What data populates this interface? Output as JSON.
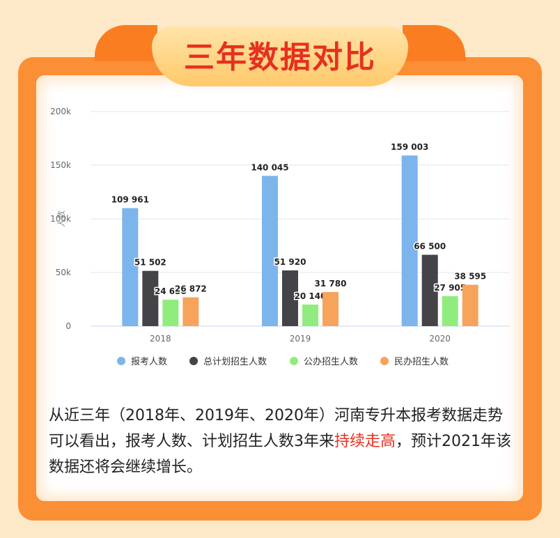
{
  "title": "三年数据对比",
  "chart_data": {
    "type": "bar",
    "categories": [
      "2018",
      "2019",
      "2020"
    ],
    "ylabel": "人数",
    "ylim": [
      0,
      200000
    ],
    "yticks": [
      0,
      50000,
      100000,
      150000,
      200000
    ],
    "ytick_labels": [
      "0",
      "50k",
      "100k",
      "150k",
      "200k"
    ],
    "grid": true,
    "legend_position": "bottom",
    "series": [
      {
        "name": "报考人数",
        "color": "#7cb5ec",
        "values": [
          109961,
          140045,
          159003
        ],
        "labels": [
          "109 961",
          "140 045",
          "159 003"
        ]
      },
      {
        "name": "总计划招生人数",
        "color": "#434348",
        "values": [
          51502,
          51920,
          66500
        ],
        "labels": [
          "51 502",
          "51 920",
          "66 500"
        ]
      },
      {
        "name": "公办招生人数",
        "color": "#90ed7d",
        "values": [
          24630,
          20140,
          27905
        ],
        "labels": [
          "24 630",
          "20 140",
          "27 905"
        ]
      },
      {
        "name": "民办招生人数",
        "color": "#f7a35c",
        "values": [
          26872,
          31780,
          38595
        ],
        "labels": [
          "26 872",
          "31 780",
          "38 595"
        ]
      }
    ]
  },
  "description": {
    "part1": "从近三年（2018年、2019年、2020年）河南专升本报考数据走势可以看出，报考人数、计划招生人数3年来",
    "highlight": "持续走高",
    "part2": "，预计2021年该数据还将会继续增长。"
  }
}
